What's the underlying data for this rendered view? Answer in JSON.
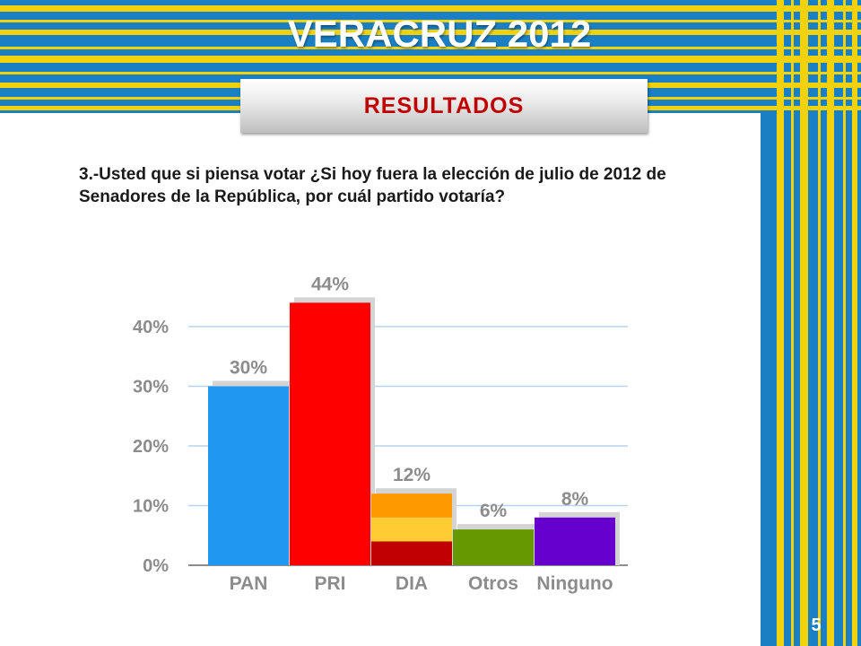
{
  "slide": {
    "title": "VERACRUZ 2012",
    "subtitle": "RESULTADOS",
    "question": "3.-Usted que si piensa votar ¿Si hoy fuera la elección de julio de  2012 de Senadores de la República, por cuál partido votaría?",
    "page_number": "5"
  },
  "colors": {
    "background_blue": "#1b7fc4",
    "stripe_yellow": "#f2d10d",
    "title_red": "#c00000",
    "axis_gray": "#8c8c8c",
    "grid_blue": "#b8d3ee"
  },
  "chart_data": {
    "type": "bar",
    "categories": [
      "PAN",
      "PRI",
      "DIA",
      "Otros",
      "Ninguno"
    ],
    "values": [
      30,
      44,
      12,
      6,
      8
    ],
    "data_labels": [
      "30%",
      "44%",
      "12%",
      "6%",
      "8%"
    ],
    "bar_colors": [
      "#1e98f0",
      "#ff0000",
      "#ff9900",
      "#669900",
      "#6600cc"
    ],
    "dia_stack_colors": [
      "#c00000",
      "#ffcc33",
      "#ff9900"
    ],
    "ytick_values": [
      0,
      10,
      20,
      30,
      40
    ],
    "ytick_labels": [
      "0%",
      "10%",
      "20%",
      "30%",
      "40%"
    ],
    "ylim": [
      0,
      44
    ],
    "grid": true,
    "legend": false
  }
}
